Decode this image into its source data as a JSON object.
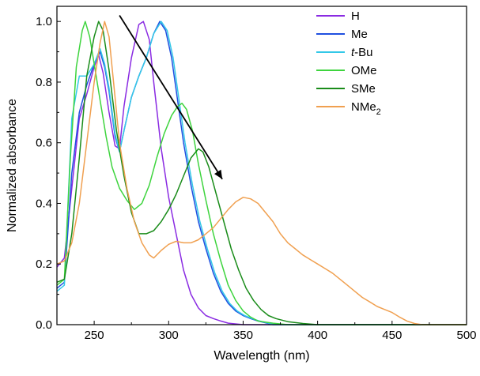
{
  "chart_data": {
    "type": "line",
    "title": "",
    "xlabel": "Wavelength (nm)",
    "ylabel": "Normalized absorbance",
    "xlim": [
      225,
      500
    ],
    "ylim": [
      0,
      1.05
    ],
    "xticks": [
      250,
      300,
      350,
      400,
      450,
      500
    ],
    "yticks": [
      0.0,
      0.2,
      0.4,
      0.6,
      0.8,
      1.0
    ],
    "xtick_labels": [
      "250",
      "300",
      "350",
      "400",
      "450",
      "500"
    ],
    "ytick_labels": [
      "0.0",
      "0.2",
      "0.4",
      "0.6",
      "0.8",
      "1.0"
    ],
    "legend_position": "top-right",
    "annotation": {
      "type": "arrow",
      "from": [
        267,
        1.02
      ],
      "to": [
        336,
        0.48
      ]
    },
    "series": [
      {
        "name": "H",
        "name_main": "H",
        "name_sub": "",
        "italic_prefix": "",
        "color": "#8a2be2",
        "points": [
          [
            225,
            0.19
          ],
          [
            230,
            0.22
          ],
          [
            235,
            0.45
          ],
          [
            240,
            0.68
          ],
          [
            245,
            0.76
          ],
          [
            250,
            0.85
          ],
          [
            253,
            0.89
          ],
          [
            256,
            0.83
          ],
          [
            260,
            0.7
          ],
          [
            264,
            0.59
          ],
          [
            267,
            0.58
          ],
          [
            270,
            0.72
          ],
          [
            275,
            0.88
          ],
          [
            280,
            0.99
          ],
          [
            283,
            1.0
          ],
          [
            287,
            0.94
          ],
          [
            290,
            0.8
          ],
          [
            295,
            0.58
          ],
          [
            300,
            0.42
          ],
          [
            305,
            0.3
          ],
          [
            310,
            0.18
          ],
          [
            315,
            0.1
          ],
          [
            320,
            0.055
          ],
          [
            325,
            0.03
          ],
          [
            330,
            0.02
          ],
          [
            335,
            0.012
          ],
          [
            340,
            0.005
          ],
          [
            350,
            0.0
          ],
          [
            500,
            0.0
          ]
        ]
      },
      {
        "name": "Me",
        "name_main": "Me",
        "name_sub": "",
        "italic_prefix": "",
        "color": "#1f4fe0",
        "points": [
          [
            225,
            0.12
          ],
          [
            230,
            0.14
          ],
          [
            235,
            0.5
          ],
          [
            240,
            0.7
          ],
          [
            245,
            0.79
          ],
          [
            250,
            0.86
          ],
          [
            254,
            0.9
          ],
          [
            257,
            0.85
          ],
          [
            260,
            0.77
          ],
          [
            264,
            0.62
          ],
          [
            267,
            0.57
          ],
          [
            270,
            0.64
          ],
          [
            275,
            0.75
          ],
          [
            280,
            0.82
          ],
          [
            285,
            0.88
          ],
          [
            290,
            0.96
          ],
          [
            294,
            1.0
          ],
          [
            298,
            0.97
          ],
          [
            302,
            0.88
          ],
          [
            306,
            0.74
          ],
          [
            310,
            0.6
          ],
          [
            315,
            0.46
          ],
          [
            320,
            0.34
          ],
          [
            325,
            0.25
          ],
          [
            330,
            0.17
          ],
          [
            335,
            0.11
          ],
          [
            340,
            0.07
          ],
          [
            345,
            0.045
          ],
          [
            350,
            0.03
          ],
          [
            355,
            0.02
          ],
          [
            360,
            0.012
          ],
          [
            365,
            0.006
          ],
          [
            370,
            0.0
          ],
          [
            500,
            0.0
          ]
        ]
      },
      {
        "name": "t-Bu",
        "name_main": "Bu",
        "name_sub": "",
        "italic_prefix": "t",
        "color": "#33c8e8",
        "points": [
          [
            225,
            0.11
          ],
          [
            230,
            0.13
          ],
          [
            235,
            0.68
          ],
          [
            240,
            0.82
          ],
          [
            245,
            0.82
          ],
          [
            250,
            0.86
          ],
          [
            254,
            0.91
          ],
          [
            257,
            0.86
          ],
          [
            260,
            0.78
          ],
          [
            264,
            0.63
          ],
          [
            267,
            0.57
          ],
          [
            270,
            0.64
          ],
          [
            275,
            0.75
          ],
          [
            280,
            0.82
          ],
          [
            285,
            0.88
          ],
          [
            290,
            0.96
          ],
          [
            295,
            1.0
          ],
          [
            299,
            0.97
          ],
          [
            303,
            0.88
          ],
          [
            307,
            0.74
          ],
          [
            311,
            0.6
          ],
          [
            316,
            0.46
          ],
          [
            321,
            0.34
          ],
          [
            326,
            0.25
          ],
          [
            331,
            0.17
          ],
          [
            336,
            0.11
          ],
          [
            341,
            0.07
          ],
          [
            346,
            0.045
          ],
          [
            351,
            0.03
          ],
          [
            356,
            0.02
          ],
          [
            361,
            0.012
          ],
          [
            366,
            0.006
          ],
          [
            371,
            0.0
          ],
          [
            500,
            0.0
          ]
        ]
      },
      {
        "name": "OMe",
        "name_main": "OMe",
        "name_sub": "",
        "italic_prefix": "",
        "color": "#3ed43e",
        "points": [
          [
            225,
            0.13
          ],
          [
            230,
            0.15
          ],
          [
            234,
            0.55
          ],
          [
            238,
            0.85
          ],
          [
            242,
            0.97
          ],
          [
            244,
            1.0
          ],
          [
            247,
            0.95
          ],
          [
            250,
            0.86
          ],
          [
            254,
            0.74
          ],
          [
            258,
            0.62
          ],
          [
            262,
            0.52
          ],
          [
            267,
            0.45
          ],
          [
            272,
            0.41
          ],
          [
            277,
            0.38
          ],
          [
            282,
            0.4
          ],
          [
            287,
            0.46
          ],
          [
            292,
            0.55
          ],
          [
            297,
            0.63
          ],
          [
            302,
            0.69
          ],
          [
            306,
            0.72
          ],
          [
            309,
            0.73
          ],
          [
            312,
            0.71
          ],
          [
            316,
            0.64
          ],
          [
            320,
            0.53
          ],
          [
            325,
            0.41
          ],
          [
            330,
            0.3
          ],
          [
            335,
            0.21
          ],
          [
            340,
            0.13
          ],
          [
            345,
            0.08
          ],
          [
            350,
            0.045
          ],
          [
            355,
            0.025
          ],
          [
            360,
            0.012
          ],
          [
            370,
            0.005
          ],
          [
            380,
            0.0
          ],
          [
            500,
            0.0
          ]
        ]
      },
      {
        "name": "SMe",
        "name_main": "SMe",
        "name_sub": "",
        "italic_prefix": "",
        "color": "#1a8c1a",
        "points": [
          [
            225,
            0.14
          ],
          [
            230,
            0.15
          ],
          [
            235,
            0.3
          ],
          [
            240,
            0.55
          ],
          [
            245,
            0.82
          ],
          [
            250,
            0.95
          ],
          [
            253,
            1.0
          ],
          [
            256,
            0.97
          ],
          [
            260,
            0.84
          ],
          [
            265,
            0.64
          ],
          [
            270,
            0.49
          ],
          [
            275,
            0.37
          ],
          [
            280,
            0.3
          ],
          [
            285,
            0.3
          ],
          [
            290,
            0.31
          ],
          [
            295,
            0.34
          ],
          [
            300,
            0.38
          ],
          [
            305,
            0.43
          ],
          [
            310,
            0.49
          ],
          [
            315,
            0.55
          ],
          [
            320,
            0.58
          ],
          [
            323,
            0.57
          ],
          [
            327,
            0.52
          ],
          [
            332,
            0.43
          ],
          [
            337,
            0.34
          ],
          [
            342,
            0.25
          ],
          [
            347,
            0.18
          ],
          [
            352,
            0.12
          ],
          [
            357,
            0.08
          ],
          [
            362,
            0.05
          ],
          [
            367,
            0.03
          ],
          [
            372,
            0.02
          ],
          [
            380,
            0.01
          ],
          [
            390,
            0.004
          ],
          [
            400,
            0.0
          ],
          [
            500,
            0.0
          ]
        ]
      },
      {
        "name": "NMe2",
        "name_main": "NMe",
        "name_sub": "2",
        "italic_prefix": "",
        "color": "#f0a050",
        "points": [
          [
            225,
            0.2
          ],
          [
            230,
            0.21
          ],
          [
            235,
            0.27
          ],
          [
            240,
            0.4
          ],
          [
            245,
            0.6
          ],
          [
            250,
            0.8
          ],
          [
            254,
            0.93
          ],
          [
            257,
            1.0
          ],
          [
            260,
            0.95
          ],
          [
            263,
            0.8
          ],
          [
            267,
            0.6
          ],
          [
            272,
            0.45
          ],
          [
            277,
            0.34
          ],
          [
            282,
            0.27
          ],
          [
            287,
            0.23
          ],
          [
            290,
            0.22
          ],
          [
            295,
            0.245
          ],
          [
            300,
            0.265
          ],
          [
            305,
            0.275
          ],
          [
            310,
            0.27
          ],
          [
            315,
            0.27
          ],
          [
            320,
            0.28
          ],
          [
            325,
            0.3
          ],
          [
            330,
            0.32
          ],
          [
            335,
            0.35
          ],
          [
            340,
            0.38
          ],
          [
            345,
            0.405
          ],
          [
            350,
            0.42
          ],
          [
            355,
            0.415
          ],
          [
            360,
            0.4
          ],
          [
            365,
            0.37
          ],
          [
            370,
            0.34
          ],
          [
            375,
            0.3
          ],
          [
            380,
            0.27
          ],
          [
            385,
            0.25
          ],
          [
            390,
            0.23
          ],
          [
            395,
            0.215
          ],
          [
            400,
            0.2
          ],
          [
            405,
            0.185
          ],
          [
            410,
            0.17
          ],
          [
            415,
            0.15
          ],
          [
            420,
            0.13
          ],
          [
            425,
            0.11
          ],
          [
            430,
            0.09
          ],
          [
            435,
            0.075
          ],
          [
            440,
            0.06
          ],
          [
            445,
            0.05
          ],
          [
            450,
            0.04
          ],
          [
            455,
            0.025
          ],
          [
            460,
            0.012
          ],
          [
            465,
            0.004
          ],
          [
            470,
            0.0
          ],
          [
            500,
            0.0
          ]
        ]
      }
    ]
  }
}
